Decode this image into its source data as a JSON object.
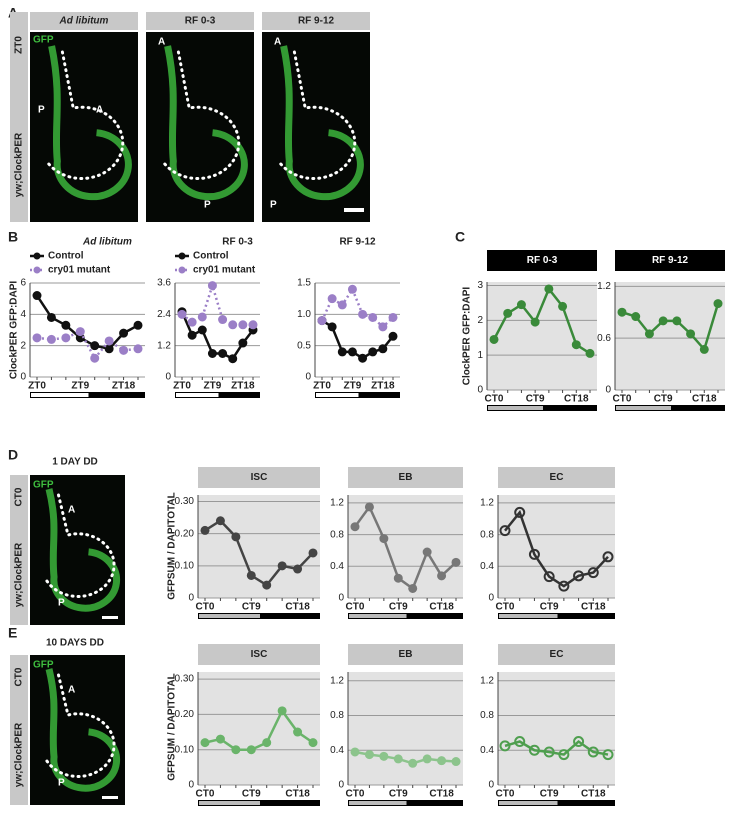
{
  "panel_labels": [
    "A",
    "B",
    "C",
    "D",
    "E"
  ],
  "panel_a": {
    "conditions": [
      "Ad libitum",
      "RF 0-3",
      "RF 9-12"
    ],
    "stain": "GFP",
    "time": "ZT0",
    "genotype": "yw;ClockPER",
    "regions": [
      "A",
      "P"
    ]
  },
  "panel_b": {
    "ylabel": "ClockPER GFP:DAPI"
  },
  "panel_c": {
    "ylabel": "ClockPER GFP:DAPI"
  },
  "panel_d": {
    "condition": "1 DAY DD",
    "stain": "GFP",
    "time": "CT0",
    "genotype": "yw;ClockPER",
    "regions": [
      "A",
      "P"
    ],
    "ylabel": "GFPSUM / DAPITOTAL"
  },
  "panel_e": {
    "condition": "10 DAYS DD",
    "stain": "GFP",
    "time": "CT0",
    "genotype": "yw;ClockPER",
    "regions": [
      "A",
      "P"
    ],
    "ylabel": "GFPSUM / DAPITOTAL"
  },
  "chart_data": [
    {
      "type": "line",
      "title": "Ad libitum",
      "categories": [
        "ZT0",
        null,
        null,
        "ZT9",
        null,
        null,
        "ZT18",
        null
      ],
      "ylim": [
        0,
        6
      ],
      "yticks": [
        0,
        2,
        4,
        6
      ],
      "grid": true,
      "legend": "top-left",
      "light_bar": "#ffffff",
      "series": [
        {
          "name": "Control",
          "color": "#111111",
          "values": [
            5.2,
            3.8,
            3.3,
            2.5,
            2.0,
            1.8,
            2.8,
            3.3
          ]
        },
        {
          "name": "cry01 mutant",
          "color": "#9b7fc7",
          "dashed": true,
          "values": [
            2.5,
            2.4,
            2.5,
            2.9,
            1.2,
            2.3,
            1.7,
            1.8
          ]
        }
      ]
    },
    {
      "type": "line",
      "title": "RF 0-3",
      "categories": [
        "ZT0",
        null,
        null,
        "ZT9",
        null,
        null,
        "ZT18",
        null
      ],
      "ylim": [
        0,
        3.6
      ],
      "yticks": [
        0,
        1.2,
        2.4,
        3.6
      ],
      "grid": true,
      "legend": "top-left",
      "light_bar": "#ffffff",
      "series": [
        {
          "name": "Control",
          "color": "#111111",
          "values": [
            2.5,
            1.6,
            1.8,
            0.9,
            0.9,
            0.7,
            1.3,
            1.8
          ]
        },
        {
          "name": "cry01 mutant",
          "color": "#9b7fc7",
          "dashed": true,
          "values": [
            2.4,
            2.1,
            2.3,
            3.5,
            2.2,
            2.0,
            2.0,
            2.0
          ]
        }
      ]
    },
    {
      "type": "line",
      "title": "RF 9-12",
      "categories": [
        "ZT0",
        null,
        null,
        "ZT9",
        null,
        null,
        "ZT18",
        null
      ],
      "ylim": [
        0,
        1.5
      ],
      "yticks": [
        0,
        0.5,
        {
          "value": 1,
          "label": "1.0"
        },
        1.5
      ],
      "grid": true,
      "light_bar": "#ffffff",
      "series": [
        {
          "name": "Control",
          "color": "#111111",
          "values": [
            0.9,
            0.8,
            0.4,
            0.4,
            0.3,
            0.4,
            0.45,
            0.65
          ]
        },
        {
          "name": "cry01 mutant",
          "color": "#9b7fc7",
          "dashed": true,
          "values": [
            0.9,
            1.25,
            1.15,
            1.4,
            1.0,
            0.95,
            0.8,
            0.95
          ]
        }
      ]
    },
    {
      "type": "line",
      "title": "RF 0-3",
      "categories": [
        "CT0",
        null,
        null,
        "CT9",
        null,
        null,
        "CT18",
        null
      ],
      "ylim": [
        0,
        3.1
      ],
      "yticks": [
        0,
        1,
        2,
        3
      ],
      "grid": true,
      "background": "#e2e2e2",
      "light_bar": "#bbbbbb",
      "series": [
        {
          "color": "#3a8a3a",
          "values": [
            1.45,
            2.2,
            2.45,
            1.95,
            2.9,
            2.4,
            1.3,
            1.05
          ]
        }
      ]
    },
    {
      "type": "line",
      "title": "RF 9-12",
      "categories": [
        "CT0",
        null,
        null,
        "CT9",
        null,
        null,
        "CT18",
        null
      ],
      "ylim": [
        0,
        1.25
      ],
      "yticks": [
        0,
        0.6,
        1.2
      ],
      "grid": true,
      "background": "#e2e2e2",
      "light_bar": "#bbbbbb",
      "series": [
        {
          "color": "#3a8a3a",
          "values": [
            0.9,
            0.85,
            0.65,
            0.8,
            0.8,
            0.65,
            0.47,
            1.0
          ]
        }
      ]
    },
    {
      "type": "line",
      "title": "ISC",
      "categories": [
        "CT0",
        null,
        null,
        "CT9",
        null,
        null,
        "CT18",
        null
      ],
      "ylim": [
        0,
        0.32
      ],
      "yticks": [
        0,
        {
          "value": 0.1,
          "label": "0.10"
        },
        {
          "value": 0.2,
          "label": "0.20"
        },
        {
          "value": 0.3,
          "label": "0.30"
        }
      ],
      "grid": true,
      "background": "#e2e2e2",
      "light_bar": "#bbbbbb",
      "series": [
        {
          "color": "#444444",
          "values": [
            0.21,
            0.24,
            0.19,
            0.07,
            0.04,
            0.1,
            0.09,
            0.14
          ]
        }
      ]
    },
    {
      "type": "line",
      "title": "EB",
      "categories": [
        "CT0",
        null,
        null,
        "CT9",
        null,
        null,
        "CT18",
        null
      ],
      "ylim": [
        0,
        1.3
      ],
      "yticks": [
        0,
        0.4,
        0.8,
        1.2
      ],
      "grid": true,
      "background": "#e2e2e2",
      "light_bar": "#bbbbbb",
      "series": [
        {
          "color": "#777777",
          "values": [
            0.9,
            1.15,
            0.75,
            0.25,
            0.12,
            0.58,
            0.28,
            0.45
          ]
        }
      ]
    },
    {
      "type": "line",
      "title": "EC",
      "categories": [
        "CT0",
        null,
        null,
        "CT9",
        null,
        null,
        "CT18",
        null
      ],
      "ylim": [
        0,
        1.3
      ],
      "yticks": [
        0,
        0.4,
        0.8,
        1.2
      ],
      "grid": true,
      "background": "#e2e2e2",
      "light_bar": "#bbbbbb",
      "open_markers": true,
      "series": [
        {
          "color": "#333333",
          "values": [
            0.85,
            1.08,
            0.55,
            0.27,
            0.15,
            0.28,
            0.32,
            0.52
          ]
        }
      ]
    },
    {
      "type": "line",
      "title": "ISC",
      "categories": [
        "CT0",
        null,
        null,
        "CT9",
        null,
        null,
        "CT18",
        null
      ],
      "ylim": [
        0,
        0.32
      ],
      "yticks": [
        0,
        {
          "value": 0.1,
          "label": "0.10"
        },
        {
          "value": 0.2,
          "label": "0.20"
        },
        {
          "value": 0.3,
          "label": "0.30"
        }
      ],
      "grid": true,
      "background": "#e2e2e2",
      "light_bar": "#bbbbbb",
      "series": [
        {
          "color": "#6ab46a",
          "values": [
            0.12,
            0.13,
            0.1,
            0.1,
            0.12,
            0.21,
            0.15,
            0.12
          ]
        }
      ]
    },
    {
      "type": "line",
      "title": "EB",
      "categories": [
        "CT0",
        null,
        null,
        "CT9",
        null,
        null,
        "CT18",
        null
      ],
      "ylim": [
        0,
        1.3
      ],
      "yticks": [
        0,
        0.4,
        0.8,
        1.2
      ],
      "grid": true,
      "background": "#e2e2e2",
      "light_bar": "#bbbbbb",
      "series": [
        {
          "color": "#8cc48c",
          "values": [
            0.38,
            0.35,
            0.33,
            0.3,
            0.25,
            0.3,
            0.28,
            0.27
          ]
        }
      ]
    },
    {
      "type": "line",
      "title": "EC",
      "categories": [
        "CT0",
        null,
        null,
        "CT9",
        null,
        null,
        "CT18",
        null
      ],
      "ylim": [
        0,
        1.3
      ],
      "yticks": [
        0,
        0.4,
        0.8,
        1.2
      ],
      "grid": true,
      "background": "#e2e2e2",
      "light_bar": "#bbbbbb",
      "open_markers": true,
      "series": [
        {
          "color": "#4f9f4f",
          "values": [
            0.45,
            0.5,
            0.4,
            0.38,
            0.35,
            0.5,
            0.38,
            0.35
          ]
        }
      ]
    }
  ]
}
